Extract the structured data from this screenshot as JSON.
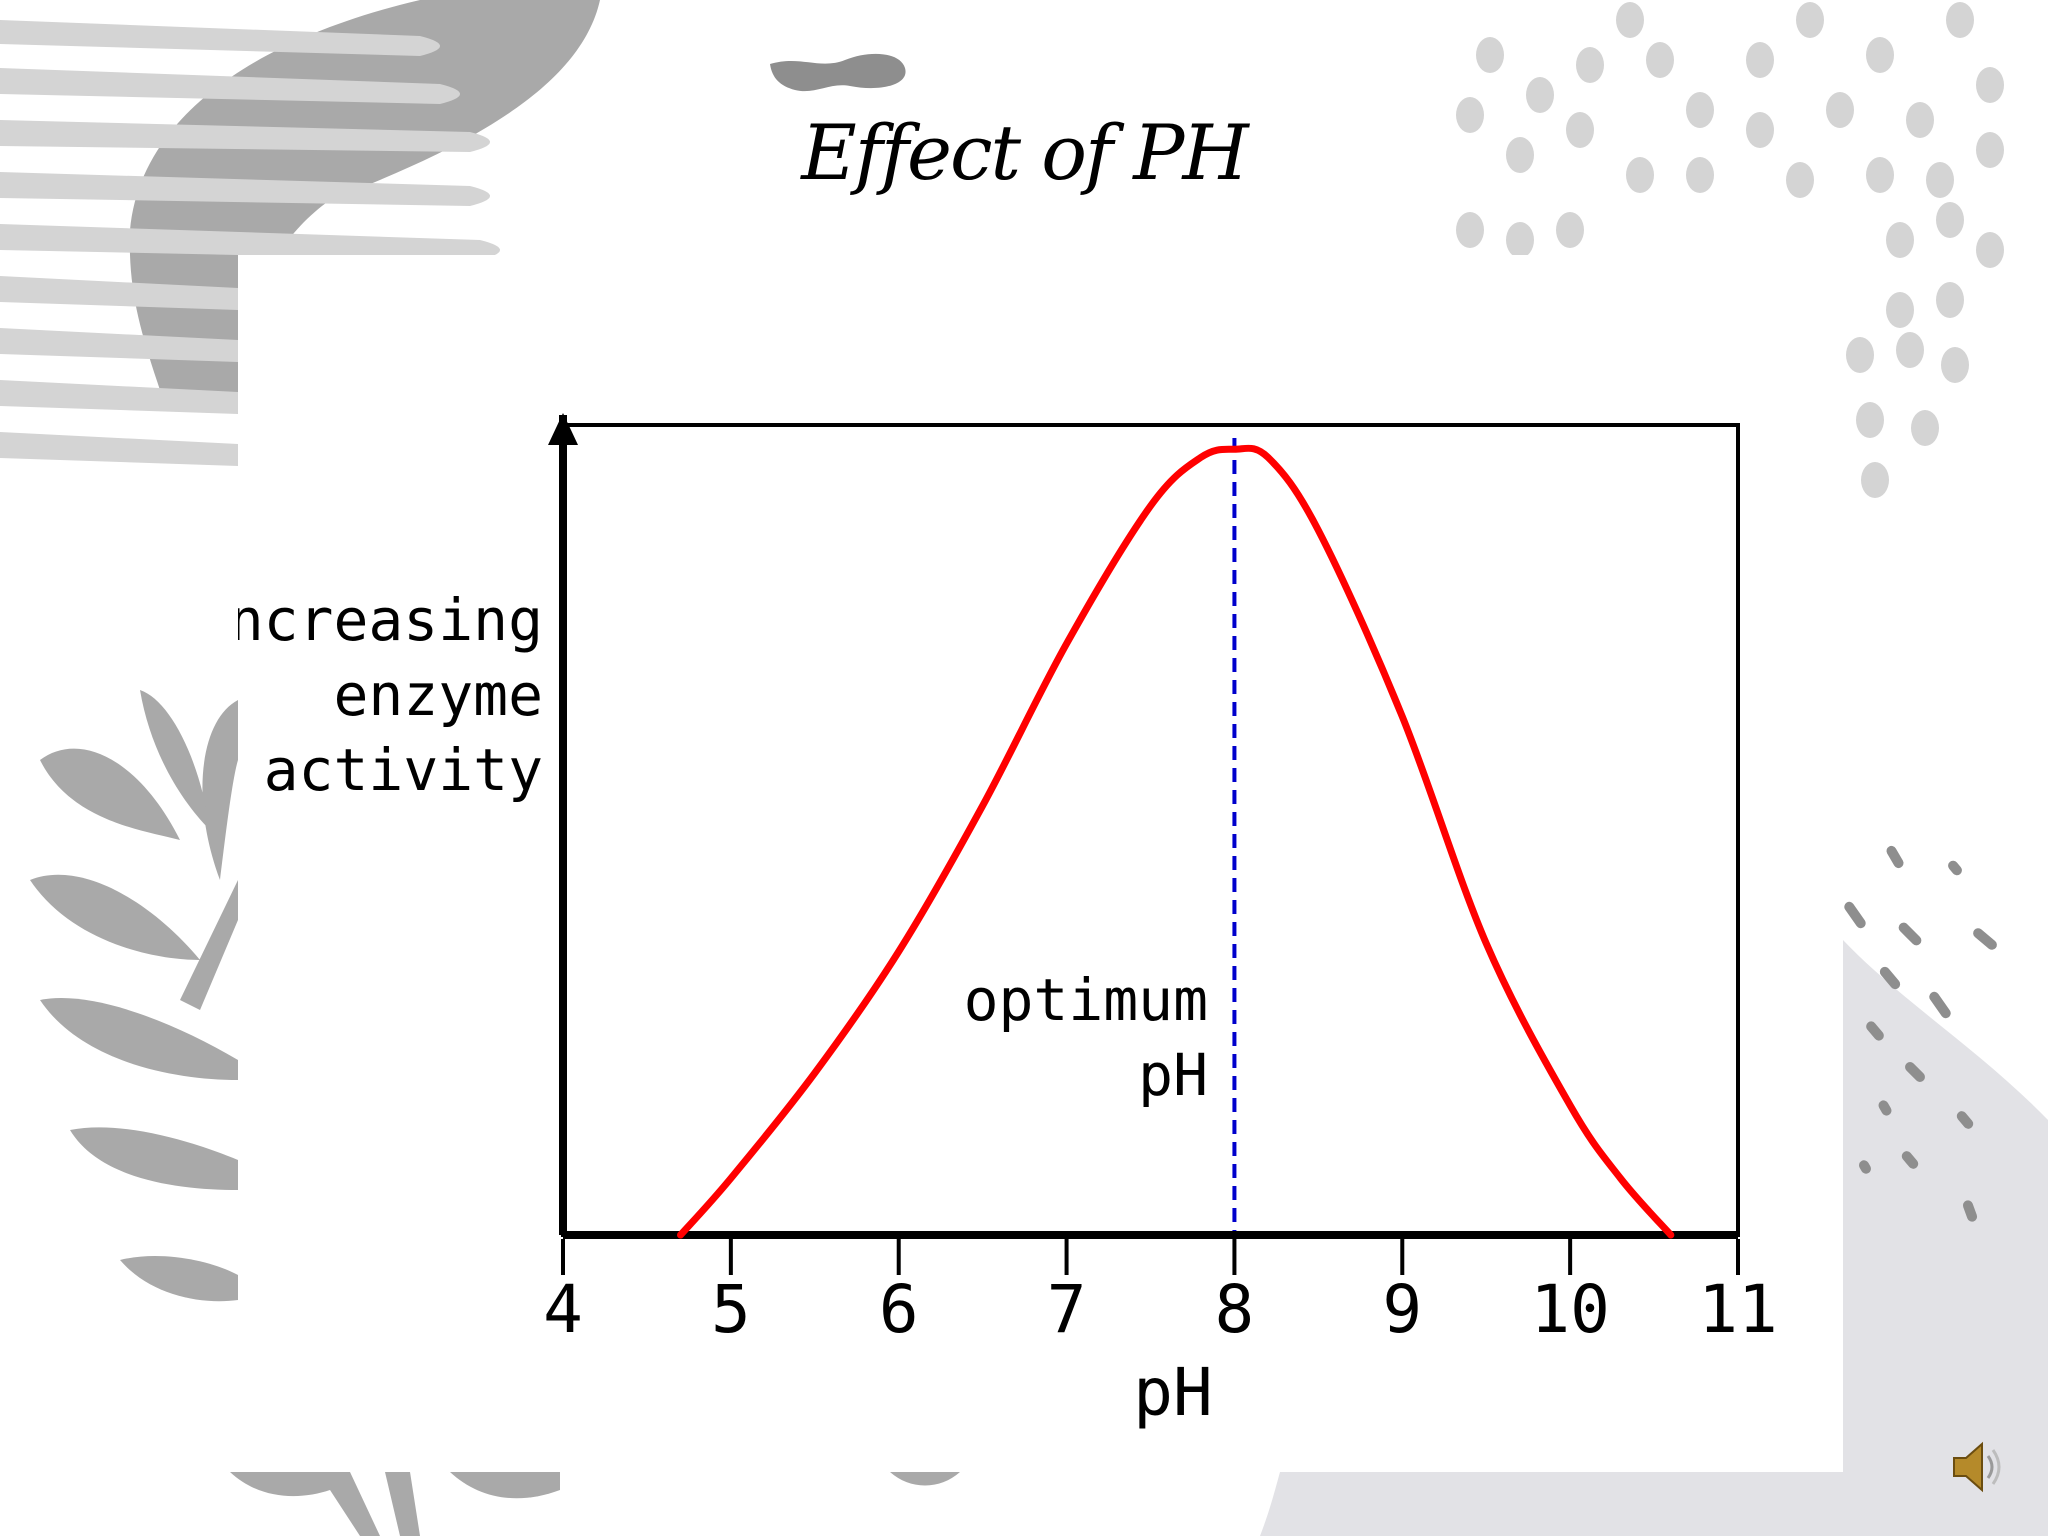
{
  "slide": {
    "title": "Effect of PH",
    "speaker_icon": "speaker-icon"
  },
  "colors": {
    "curve": "#ff0000",
    "optimum_line": "#0000cc",
    "axis": "#000000",
    "decor_dark": "#a9a9a9",
    "decor_light": "#d4d4d4",
    "decor_pale": "#e2e2e6"
  },
  "chart_data": {
    "type": "line",
    "xlabel": "pH",
    "ylabel_lines": [
      "increasing",
      "enzyme",
      "activity"
    ],
    "xlim": [
      4,
      11
    ],
    "ylim": [
      0,
      1
    ],
    "xticks": [
      4,
      5,
      6,
      7,
      8,
      9,
      10,
      11
    ],
    "grid": false,
    "series": [
      {
        "x": [
          4.7,
          5.0,
          5.5,
          6.0,
          6.5,
          7.0,
          7.5,
          7.8,
          8.0,
          8.2,
          8.5,
          9.0,
          9.5,
          10.0,
          10.3,
          10.6
        ],
        "y": [
          0.0,
          0.07,
          0.2,
          0.35,
          0.53,
          0.73,
          0.9,
          0.96,
          0.97,
          0.96,
          0.87,
          0.64,
          0.36,
          0.16,
          0.07,
          0.0
        ]
      }
    ],
    "annotations": [
      {
        "x": 8,
        "style": "dashed-vertical",
        "label_lines": [
          "optimum",
          "pH"
        ]
      }
    ]
  }
}
